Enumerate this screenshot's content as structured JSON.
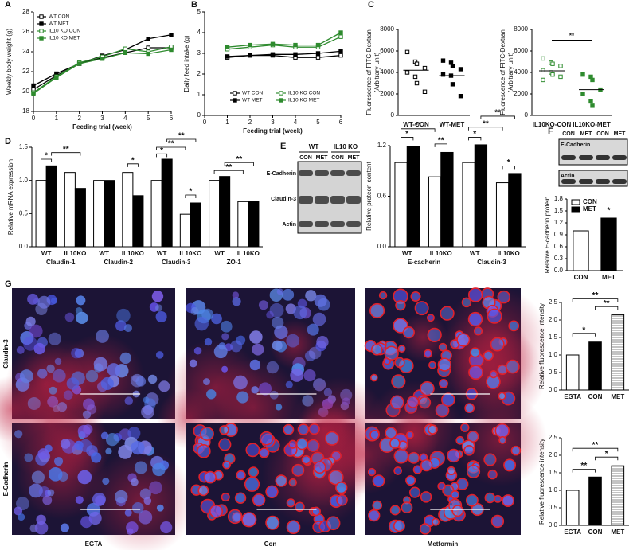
{
  "chart_data": [
    {
      "type": "line",
      "ylabel": "Weekly body weight (g)",
      "xlabel": "Feeding trial (week)",
      "x": [
        0,
        1,
        2,
        3,
        4,
        5,
        6
      ],
      "xlim": [
        0,
        6
      ],
      "xticks": [
        0,
        1,
        2,
        3,
        4,
        5,
        6
      ],
      "ylim": [
        18,
        28
      ],
      "yticks": [
        18,
        20,
        22,
        24,
        26,
        28
      ],
      "legend": "upper left",
      "series": [
        {
          "name": "WT CON",
          "color": "#000000",
          "filled": false,
          "values": [
            20.2,
            21.6,
            22.8,
            23.4,
            23.9,
            24.4,
            24.4
          ]
        },
        {
          "name": "WT MET",
          "color": "#000000",
          "filled": true,
          "values": [
            20.6,
            21.8,
            22.8,
            23.6,
            24.2,
            25.3,
            25.7
          ]
        },
        {
          "name": "IL10 KO CON",
          "color": "#2e8b2e",
          "filled": false,
          "values": [
            19.9,
            21.5,
            22.9,
            23.5,
            24.3,
            24.0,
            24.5
          ]
        },
        {
          "name": "IL10 KO MET",
          "color": "#2e8b2e",
          "filled": true,
          "values": [
            19.8,
            21.4,
            22.8,
            23.3,
            23.9,
            23.8,
            24.2
          ]
        }
      ]
    },
    {
      "type": "line",
      "ylabel": "Daily feed intake (g)",
      "xlabel": "Feeding trial (week)",
      "x": [
        1,
        2,
        3,
        4,
        5,
        6
      ],
      "xlim": [
        0,
        6
      ],
      "xticks": [
        0,
        1,
        2,
        3,
        4,
        5,
        6
      ],
      "ylim": [
        0,
        5
      ],
      "yticks": [
        0,
        1,
        2,
        3,
        4,
        5
      ],
      "legend": "lower center",
      "series": [
        {
          "name": "WT CON",
          "color": "#000000",
          "filled": false,
          "values": [
            2.8,
            2.9,
            2.9,
            2.8,
            2.8,
            2.9
          ]
        },
        {
          "name": "WT MET",
          "color": "#000000",
          "filled": true,
          "values": [
            2.85,
            2.9,
            2.95,
            2.95,
            3.0,
            3.1
          ]
        },
        {
          "name": "IL10 KO CON",
          "color": "#2e8b2e",
          "filled": false,
          "values": [
            3.2,
            3.3,
            3.4,
            3.3,
            3.3,
            3.8
          ]
        },
        {
          "name": "IL10 KO MET",
          "color": "#2e8b2e",
          "filled": true,
          "values": [
            3.3,
            3.4,
            3.45,
            3.4,
            3.4,
            4.0
          ]
        }
      ]
    },
    {
      "type": "strip",
      "ylabel": [
        "Fluorescence of FITC-Dextran",
        "(Arbitrary unit)"
      ],
      "categories": [
        "WT-CON",
        "WT-MET"
      ],
      "ylim": [
        0,
        8000
      ],
      "yticks": [
        0,
        2000,
        4000,
        6000,
        8000
      ],
      "color": "#000000",
      "filled": [
        false,
        true
      ],
      "points": [
        [
          5900,
          5000,
          4800,
          4400,
          4000,
          3600,
          3000,
          2200
        ],
        [
          5100,
          4900,
          4600,
          4300,
          3800,
          3700,
          2900,
          1800
        ]
      ],
      "means": [
        4200,
        3700
      ]
    },
    {
      "type": "strip",
      "ylabel": [
        "Fluorescence of FITC-Dextran",
        "(Arbitrary unit)"
      ],
      "categories": [
        "IL10KO-CON",
        "IL10KO-MET"
      ],
      "ylim": [
        0,
        8000
      ],
      "yticks": [
        0,
        2000,
        4000,
        6000,
        8000
      ],
      "color": "#2e8b2e",
      "filled": [
        false,
        true
      ],
      "points": [
        [
          5300,
          4900,
          4800,
          4600,
          4200,
          4000,
          3800,
          3600,
          3300
        ],
        [
          3800,
          3600,
          3300,
          2400,
          2000,
          1300,
          900
        ]
      ],
      "means": [
        4150,
        2400
      ],
      "annotations": [
        "**"
      ]
    },
    {
      "type": "bar",
      "ylabel": "Relative mRNA expression",
      "categories": [
        "WT",
        "IL10KO",
        "WT",
        "IL10KO",
        "WT",
        "IL10KO",
        "WT",
        "IL10KO"
      ],
      "groups": [
        "Claudin-1",
        "Claudin-2",
        "Claudin-3",
        "ZO-1"
      ],
      "ylim": [
        0,
        1.5
      ],
      "yticks": [
        {
          "value": 0,
          "label": "0.0"
        },
        0.5,
        {
          "value": 1,
          "label": "1.0"
        },
        1.5
      ],
      "series": [
        {
          "color": "#ffffff",
          "values": [
            1.0,
            1.12,
            1.0,
            1.12,
            1.0,
            0.49,
            1.0,
            0.68
          ]
        },
        {
          "color": "#000000",
          "values": [
            1.22,
            0.88,
            1.0,
            0.77,
            1.32,
            0.66,
            1.06,
            0.68
          ]
        }
      ],
      "annotations": [
        "*",
        "**",
        "*",
        "*",
        "**",
        "**",
        "*",
        "**",
        "**"
      ]
    },
    {
      "type": "bar",
      "ylabel": "Relative proteon content",
      "categories": [
        "WT",
        "IL10KO",
        "WT",
        "IL10KO"
      ],
      "groups": [
        "E-cadherin",
        "Claudin-3"
      ],
      "ylim": [
        0,
        1.2
      ],
      "yticks": [
        {
          "value": 0,
          "label": "0.0"
        },
        0.6,
        1.2
      ],
      "series": [
        {
          "color": "#ffffff",
          "values": [
            1.0,
            0.83,
            1.0,
            0.76
          ]
        },
        {
          "color": "#000000",
          "values": [
            1.19,
            1.12,
            1.21,
            0.87
          ]
        }
      ],
      "annotations": [
        "*",
        "**",
        "**",
        "*",
        "**",
        "**",
        "*"
      ]
    },
    {
      "type": "bar",
      "ylabel": "Relative E-cadherin protein",
      "categories": [
        "CON",
        "MET"
      ],
      "values": [
        1.0,
        1.32
      ],
      "colors": [
        "#ffffff",
        "#000000"
      ],
      "legend": "upper left",
      "ylim": [
        0,
        1.8
      ],
      "yticks": [
        {
          "value": 0,
          "label": "0.0"
        },
        0.3,
        0.6,
        0.9,
        1.2,
        1.5,
        1.8
      ],
      "annotations": [
        "*"
      ]
    },
    {
      "type": "bar",
      "ylabel": "Relative fluorescence intensity",
      "categories": [
        "EGTA",
        "CON",
        "MET"
      ],
      "values": [
        1.0,
        1.37,
        2.15
      ],
      "colors": [
        "#ffffff",
        "#000000",
        "#bbbbbb"
      ],
      "hatch": [
        false,
        false,
        true
      ],
      "ylim": [
        0,
        2.5
      ],
      "yticks": [
        {
          "value": 0,
          "label": "0.0"
        },
        0.5,
        {
          "value": 1,
          "label": "1.0"
        },
        1.5,
        {
          "value": 2,
          "label": "2.0"
        },
        2.5
      ],
      "annotations": [
        "**",
        "**",
        "*"
      ]
    },
    {
      "type": "bar",
      "ylabel": "Relative fluorescence intensity",
      "categories": [
        "EGTA",
        "CON",
        "MET"
      ],
      "values": [
        1.0,
        1.38,
        1.7
      ],
      "colors": [
        "#ffffff",
        "#000000",
        "#bbbbbb"
      ],
      "hatch": [
        false,
        false,
        true
      ],
      "ylim": [
        0,
        2.5
      ],
      "yticks": [
        {
          "value": 0,
          "label": "0.0"
        },
        0.5,
        {
          "value": 1,
          "label": "1.0"
        },
        1.5,
        {
          "value": 2,
          "label": "2.0"
        },
        2.5
      ],
      "annotations": [
        "**",
        "*",
        "**"
      ]
    }
  ],
  "panel_labels": [
    "A",
    "B",
    "C",
    "D",
    "E",
    "F",
    "G"
  ],
  "blot_e": {
    "groups": [
      "WT",
      "IL10 KO"
    ],
    "lanes": [
      "CON",
      "MET",
      "CON",
      "MET"
    ],
    "proteins": [
      "E-Cadherin",
      "Claudin-3",
      "Actin"
    ]
  },
  "blot_f": {
    "lanes": [
      "CON",
      "MET",
      "CON",
      "MET"
    ],
    "proteins": [
      "E-Cadherin",
      "Actin"
    ]
  },
  "micrographs": {
    "rows": [
      "Claudin-3",
      "E-Cadherin"
    ],
    "columns": [
      "EGTA",
      "Con",
      "Metformin"
    ]
  }
}
